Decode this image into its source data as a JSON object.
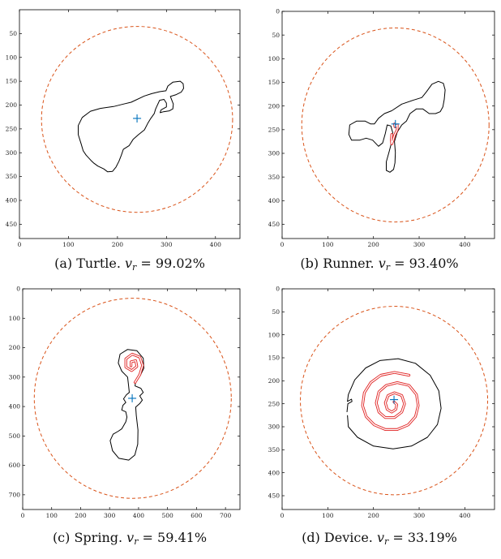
{
  "chart_data": [
    {
      "type": "scatter",
      "caption": {
        "prefix": "(a) Turtle. ",
        "var": "v",
        "sub": "r",
        "eq": " = ",
        "val": "99.02%"
      },
      "xlim": [
        0,
        450
      ],
      "ylim": [
        480,
        0
      ],
      "xticks": [
        0,
        100,
        200,
        300,
        400
      ],
      "yticks": [
        50,
        100,
        150,
        200,
        250,
        300,
        350,
        400,
        450
      ],
      "circle": {
        "cx": 240,
        "cy": 230,
        "r": 195,
        "color": "#d95319"
      },
      "center_marker": {
        "x": 240,
        "y": 228,
        "color": "#0072bd"
      },
      "black_outline": [
        [
          228,
          194
        ],
        [
          255,
          181
        ],
        [
          270,
          176
        ],
        [
          286,
          172
        ],
        [
          299,
          170
        ],
        [
          303,
          160
        ],
        [
          313,
          152
        ],
        [
          328,
          150
        ],
        [
          334,
          155
        ],
        [
          335,
          165
        ],
        [
          330,
          173
        ],
        [
          320,
          178
        ],
        [
          308,
          182
        ],
        [
          314,
          198
        ],
        [
          313,
          208
        ],
        [
          306,
          212
        ],
        [
          294,
          214
        ],
        [
          287,
          216
        ],
        [
          289,
          210
        ],
        [
          300,
          204
        ],
        [
          300,
          196
        ],
        [
          295,
          188
        ],
        [
          286,
          190
        ],
        [
          278,
          208
        ],
        [
          275,
          218
        ],
        [
          268,
          228
        ],
        [
          262,
          238
        ],
        [
          255,
          252
        ],
        [
          243,
          262
        ],
        [
          232,
          272
        ],
        [
          224,
          285
        ],
        [
          212,
          293
        ],
        [
          208,
          305
        ],
        [
          203,
          318
        ],
        [
          197,
          330
        ],
        [
          190,
          339
        ],
        [
          180,
          340
        ],
        [
          172,
          334
        ],
        [
          160,
          328
        ],
        [
          152,
          322
        ],
        [
          146,
          316
        ],
        [
          136,
          305
        ],
        [
          130,
          296
        ],
        [
          126,
          282
        ],
        [
          120,
          262
        ],
        [
          120,
          243
        ],
        [
          128,
          226
        ],
        [
          145,
          213
        ],
        [
          165,
          207
        ],
        [
          192,
          203
        ],
        [
          212,
          198
        ],
        [
          228,
          194
        ]
      ],
      "red_spiral": []
    },
    {
      "type": "scatter",
      "caption": {
        "prefix": "(b) Runner. ",
        "var": "v",
        "sub": "r",
        "eq": " = ",
        "val": "93.40%"
      },
      "xlim": [
        0,
        465
      ],
      "ylim": [
        480,
        0
      ],
      "xticks": [
        0,
        100,
        200,
        300,
        400
      ],
      "yticks": [
        0,
        50,
        100,
        150,
        200,
        250,
        300,
        350,
        400,
        450
      ],
      "circle": {
        "cx": 248,
        "cy": 240,
        "r": 205,
        "color": "#d95319"
      },
      "center_marker": {
        "x": 248,
        "y": 238,
        "color": "#0072bd"
      },
      "black_outline": [
        [
          240,
          210
        ],
        [
          262,
          196
        ],
        [
          286,
          188
        ],
        [
          306,
          182
        ],
        [
          316,
          170
        ],
        [
          328,
          154
        ],
        [
          342,
          148
        ],
        [
          353,
          152
        ],
        [
          357,
          166
        ],
        [
          355,
          186
        ],
        [
          352,
          202
        ],
        [
          346,
          212
        ],
        [
          336,
          216
        ],
        [
          322,
          216
        ],
        [
          308,
          206
        ],
        [
          294,
          206
        ],
        [
          280,
          216
        ],
        [
          272,
          232
        ],
        [
          262,
          240
        ],
        [
          252,
          255
        ],
        [
          246,
          275
        ],
        [
          248,
          298
        ],
        [
          247,
          320
        ],
        [
          244,
          334
        ],
        [
          236,
          340
        ],
        [
          228,
          336
        ],
        [
          228,
          318
        ],
        [
          234,
          298
        ],
        [
          240,
          276
        ],
        [
          242,
          256
        ],
        [
          238,
          242
        ],
        [
          230,
          240
        ],
        [
          226,
          258
        ],
        [
          220,
          278
        ],
        [
          211,
          285
        ],
        [
          198,
          272
        ],
        [
          184,
          268
        ],
        [
          170,
          272
        ],
        [
          152,
          272
        ],
        [
          146,
          260
        ],
        [
          148,
          240
        ],
        [
          163,
          232
        ],
        [
          182,
          232
        ],
        [
          194,
          238
        ],
        [
          202,
          238
        ],
        [
          211,
          226
        ],
        [
          224,
          216
        ],
        [
          240,
          210
        ]
      ],
      "red_spiral": [
        [
          246,
          238
        ],
        [
          247,
          244
        ],
        [
          252,
          240
        ],
        [
          252,
          250
        ],
        [
          246,
          262
        ],
        [
          243,
          272
        ],
        [
          240,
          280
        ],
        [
          239,
          272
        ],
        [
          240,
          260
        ]
      ]
    },
    {
      "type": "scatter",
      "caption": {
        "prefix": "(c) Spring. ",
        "var": "v",
        "sub": "r",
        "eq": " = ",
        "val": "59.41%"
      },
      "xlim": [
        0,
        750
      ],
      "ylim": [
        750,
        0
      ],
      "xticks": [
        0,
        100,
        200,
        300,
        400,
        500,
        600,
        700
      ],
      "yticks": [
        0,
        100,
        200,
        300,
        400,
        500,
        600,
        700
      ],
      "circle": {
        "cx": 380,
        "cy": 372,
        "r": 340,
        "color": "#d95319"
      },
      "center_marker": {
        "x": 378,
        "y": 372,
        "color": "#0072bd"
      },
      "black_outline": [
        [
          408,
          338
        ],
        [
          416,
          352
        ],
        [
          404,
          364
        ],
        [
          413,
          378
        ],
        [
          404,
          390
        ],
        [
          390,
          402
        ],
        [
          392,
          430
        ],
        [
          398,
          480
        ],
        [
          397,
          528
        ],
        [
          387,
          565
        ],
        [
          366,
          582
        ],
        [
          332,
          576
        ],
        [
          310,
          550
        ],
        [
          302,
          516
        ],
        [
          312,
          494
        ],
        [
          330,
          484
        ],
        [
          342,
          476
        ],
        [
          356,
          452
        ],
        [
          360,
          436
        ],
        [
          356,
          418
        ],
        [
          342,
          412
        ],
        [
          346,
          396
        ],
        [
          356,
          386
        ],
        [
          348,
          374
        ],
        [
          358,
          360
        ],
        [
          368,
          352
        ],
        [
          365,
          324
        ],
        [
          362,
          300
        ],
        [
          342,
          280
        ],
        [
          330,
          252
        ],
        [
          336,
          222
        ],
        [
          362,
          206
        ],
        [
          394,
          210
        ],
        [
          416,
          236
        ],
        [
          418,
          270
        ],
        [
          406,
          294
        ],
        [
          390,
          312
        ],
        [
          388,
          330
        ],
        [
          408,
          338
        ]
      ],
      "red_spiral": [
        [
          388,
          318
        ],
        [
          404,
          292
        ],
        [
          414,
          260
        ],
        [
          404,
          232
        ],
        [
          378,
          222
        ],
        [
          356,
          238
        ],
        [
          356,
          266
        ],
        [
          376,
          278
        ],
        [
          394,
          264
        ],
        [
          390,
          244
        ],
        [
          374,
          248
        ],
        [
          374,
          262
        ]
      ]
    },
    {
      "type": "scatter",
      "caption": {
        "prefix": "(d) Device. ",
        "var": "v",
        "sub": "r",
        "eq": " = ",
        "val": "33.19%"
      },
      "xlim": [
        0,
        465
      ],
      "ylim": [
        480,
        0
      ],
      "xticks": [
        0,
        100,
        200,
        300,
        400
      ],
      "yticks": [
        0,
        50,
        100,
        150,
        200,
        250,
        300,
        350,
        400,
        450
      ],
      "circle": {
        "cx": 245,
        "cy": 243,
        "r": 205,
        "color": "#d95319"
      },
      "center_marker": {
        "x": 245,
        "y": 241,
        "color": "#0072bd"
      },
      "black_outline": [
        [
          143,
          275
        ],
        [
          145,
          300
        ],
        [
          165,
          323
        ],
        [
          200,
          342
        ],
        [
          243,
          348
        ],
        [
          283,
          342
        ],
        [
          318,
          323
        ],
        [
          340,
          295
        ],
        [
          348,
          260
        ],
        [
          343,
          222
        ],
        [
          324,
          188
        ],
        [
          292,
          162
        ],
        [
          254,
          152
        ],
        [
          214,
          156
        ],
        [
          183,
          172
        ],
        [
          159,
          198
        ],
        [
          145,
          230
        ],
        [
          143,
          245
        ],
        [
          152,
          240
        ],
        [
          153,
          245
        ],
        [
          144,
          250
        ],
        [
          142,
          268
        ]
      ],
      "red_spiral": [
        [
          245,
          246
        ],
        [
          251,
          252
        ],
        [
          249,
          262
        ],
        [
          240,
          268
        ],
        [
          230,
          262
        ],
        [
          226,
          248
        ],
        [
          232,
          232
        ],
        [
          246,
          226
        ],
        [
          262,
          232
        ],
        [
          268,
          250
        ],
        [
          262,
          268
        ],
        [
          246,
          280
        ],
        [
          226,
          280
        ],
        [
          212,
          268
        ],
        [
          206,
          248
        ],
        [
          212,
          224
        ],
        [
          228,
          210
        ],
        [
          252,
          204
        ],
        [
          278,
          210
        ],
        [
          294,
          230
        ],
        [
          298,
          254
        ],
        [
          292,
          278
        ],
        [
          276,
          296
        ],
        [
          252,
          306
        ],
        [
          226,
          306
        ],
        [
          202,
          296
        ],
        [
          184,
          278
        ],
        [
          176,
          254
        ],
        [
          180,
          226
        ],
        [
          194,
          204
        ],
        [
          216,
          188
        ],
        [
          246,
          182
        ],
        [
          278,
          188
        ]
      ]
    }
  ]
}
